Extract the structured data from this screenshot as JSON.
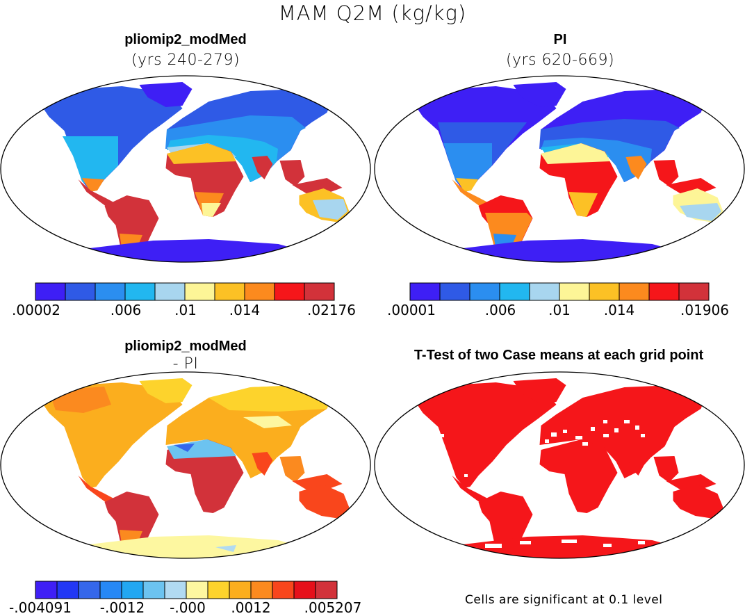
{
  "figure_title": "MAM Q2M (kg/kg)",
  "panels": {
    "top_left": {
      "title": "pliomip2_modMed",
      "subtitle": "(yrs 240-279)"
    },
    "top_right": {
      "title": "PI",
      "subtitle": "(yrs 620-669)"
    },
    "bottom_left": {
      "title": "pliomip2_modMed",
      "subtitle": "- PI"
    },
    "bottom_right": {
      "title": "T-Test of two Case means at each grid point",
      "note": "Cells are significant at 0.1 level"
    }
  },
  "colorbars": {
    "top_left": {
      "ticks": [
        ".00002",
        ".006",
        ".01",
        ".014",
        ".02176"
      ],
      "colors": [
        "#3e1ff5",
        "#2f5ae6",
        "#2b8ef0",
        "#22b7f0",
        "#a8d6ef",
        "#fdf597",
        "#fcc125",
        "#fc8a1e",
        "#f5161a",
        "#d2323a"
      ]
    },
    "top_right": {
      "ticks": [
        ".00001",
        ".006",
        ".01",
        ".014",
        ".01906"
      ],
      "colors": [
        "#3e1ff5",
        "#2f5ae6",
        "#2b8ef0",
        "#22b7f0",
        "#a8d6ef",
        "#fdf597",
        "#fcc125",
        "#fc8a1e",
        "#f5161a",
        "#d2323a"
      ]
    },
    "bottom_left": {
      "ticks": [
        "-.004091",
        "-.0012",
        "-.000",
        ".0012",
        ".005207"
      ],
      "colors": [
        "#3f1ff5",
        "#2238f5",
        "#3567eb",
        "#2688f5",
        "#22a7f2",
        "#6cc3f0",
        "#b1daf2",
        "#fdf7a0",
        "#fdd32c",
        "#fbae1e",
        "#fb8a1f",
        "#f9461c",
        "#e6101a",
        "#d2323a"
      ]
    }
  }
}
